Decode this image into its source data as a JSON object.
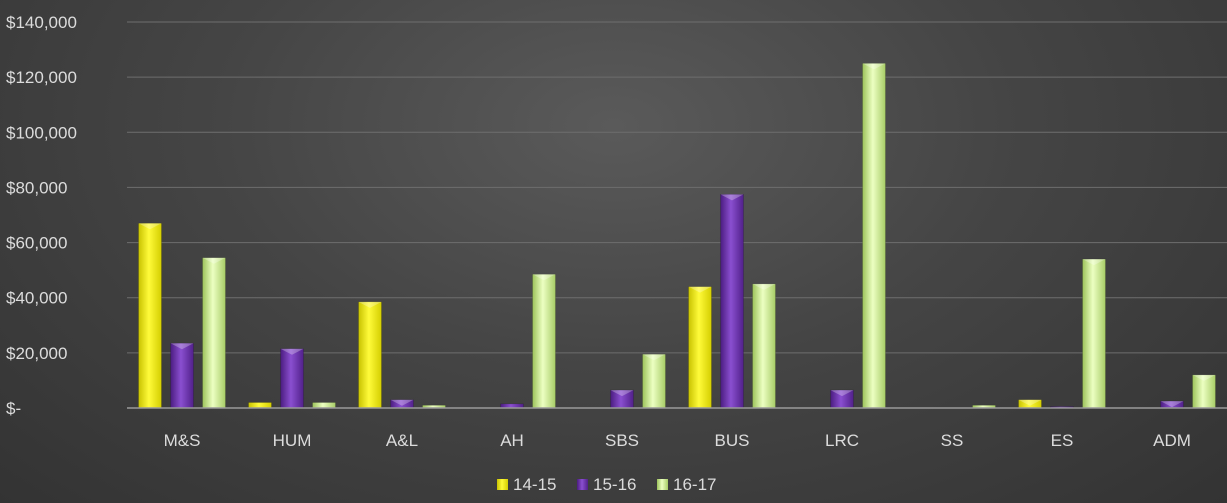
{
  "chart_data": {
    "type": "bar",
    "title": "",
    "xlabel": "",
    "ylabel": "",
    "categories": [
      "M&S",
      "HUM",
      "A&L",
      "AH",
      "SBS",
      "BUS",
      "LRC",
      "SS",
      "ES",
      "ADM"
    ],
    "series": [
      {
        "name": "14-15",
        "color": "#f5f000",
        "values": [
          67000,
          2000,
          38500,
          0,
          0,
          44000,
          0,
          0,
          3000,
          0
        ]
      },
      {
        "name": "15-16",
        "color": "#6a2fa8",
        "values": [
          23500,
          21500,
          3000,
          1500,
          6500,
          77500,
          6500,
          0,
          500,
          2500
        ]
      },
      {
        "name": "16-17",
        "color": "#c6e58a",
        "values": [
          54500,
          2000,
          1000,
          48500,
          19500,
          45000,
          125000,
          1000,
          54000,
          12000
        ]
      }
    ],
    "ylim": [
      0,
      140000
    ],
    "yticks": [
      0,
      20000,
      40000,
      60000,
      80000,
      100000,
      120000,
      140000
    ],
    "ytick_labels": [
      "$-",
      "$20,000",
      "$40,000",
      "$60,000",
      "$80,000",
      "$100,000",
      "$120,000",
      "$140,000"
    ],
    "grid": true,
    "legend_position": "bottom-center"
  }
}
